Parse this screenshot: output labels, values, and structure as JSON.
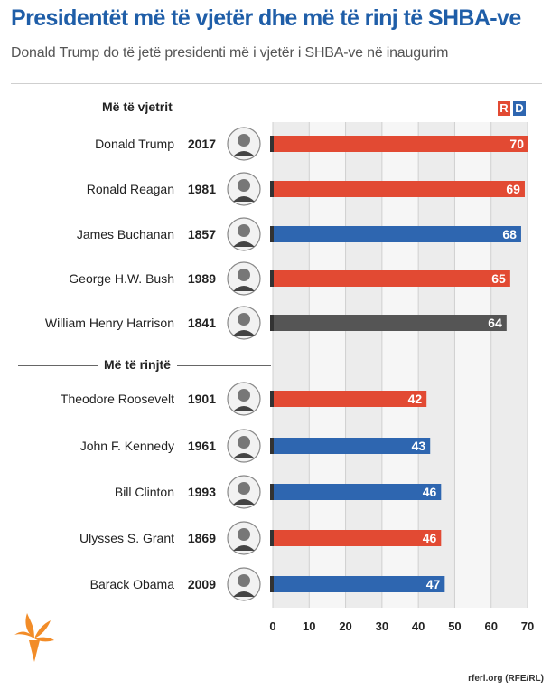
{
  "title": "Presidentët më të vjetër dhe më të rinj të SHBA-ve",
  "subtitle": "Donald Trump do të jetë presidenti më i vjetër i SHBA-ve në inaugurim",
  "footer": "rferl.org (RFE/RL)",
  "legend": {
    "r_label": "R",
    "d_label": "D",
    "r_color": "#e24a33",
    "d_color": "#2e66b0",
    "other_color": "#555555"
  },
  "chart_data": {
    "type": "bar",
    "orientation": "horizontal",
    "xlim": [
      0,
      70
    ],
    "xticks": [
      0,
      10,
      20,
      30,
      40,
      50,
      60,
      70
    ],
    "grid": true,
    "groups": [
      {
        "label": "Më të vjetrit",
        "rows": [
          {
            "name": "Donald Trump",
            "year": "2017",
            "value": 70,
            "party": "R",
            "avatar": "portrait-icon"
          },
          {
            "name": "Ronald Reagan",
            "year": "1981",
            "value": 69,
            "party": "R",
            "avatar": "portrait-icon"
          },
          {
            "name": "James Buchanan",
            "year": "1857",
            "value": 68,
            "party": "D",
            "avatar": "portrait-icon"
          },
          {
            "name": "George H.W. Bush",
            "year": "1989",
            "value": 65,
            "party": "R",
            "avatar": "portrait-icon"
          },
          {
            "name": "William Henry Harrison",
            "year": "1841",
            "value": 64,
            "party": "W",
            "avatar": "portrait-icon"
          }
        ]
      },
      {
        "label": "Më të rinjtë",
        "rows": [
          {
            "name": "Theodore Roosevelt",
            "year": "1901",
            "value": 42,
            "party": "R",
            "avatar": "portrait-icon"
          },
          {
            "name": "John F. Kennedy",
            "year": "1961",
            "value": 43,
            "party": "D",
            "avatar": "portrait-icon"
          },
          {
            "name": "Bill Clinton",
            "year": "1993",
            "value": 46,
            "party": "D",
            "avatar": "portrait-icon"
          },
          {
            "name": "Ulysses S. Grant",
            "year": "1869",
            "value": 46,
            "party": "R",
            "avatar": "portrait-icon"
          },
          {
            "name": "Barack Obama",
            "year": "2009",
            "value": 47,
            "party": "D",
            "avatar": "portrait-icon"
          }
        ]
      }
    ]
  }
}
